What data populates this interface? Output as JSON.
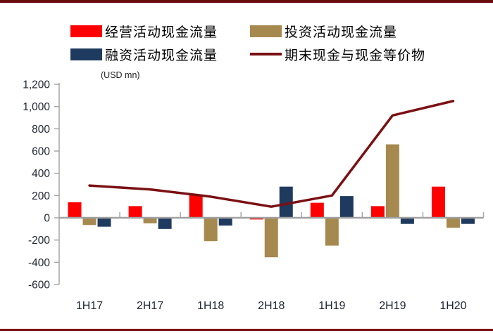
{
  "page": {
    "top_border_color": "#690B0D",
    "bottom_border_color": "#7A1215",
    "axis_color": "#A6A6A6",
    "zero_line_color": "#A0A0A0",
    "tick_label_color": "#1F2533"
  },
  "legend": {
    "items": [
      {
        "label": "经营活动现金流量",
        "color": "#FE0000",
        "swatch": "box"
      },
      {
        "label": "投资活动现金流量",
        "color": "#A6894E",
        "swatch": "box"
      },
      {
        "label": "融资活动现金流量",
        "color": "#1F3A5F",
        "swatch": "box"
      },
      {
        "label": "期末现金与现金等价物",
        "color": "#7A1013",
        "swatch": "line"
      }
    ]
  },
  "chart_data": {
    "type": "bar+line",
    "title": "",
    "xlabel": "",
    "ylabel": "(USD mn)",
    "categories": [
      "1H17",
      "2H17",
      "1H18",
      "2H18",
      "1H19",
      "2H19",
      "1H20"
    ],
    "series": [
      {
        "name": "经营活动现金流量",
        "type": "bar",
        "color": "#FE0000",
        "values": [
          140,
          105,
          205,
          -15,
          135,
          105,
          280
        ]
      },
      {
        "name": "投资活动现金流量",
        "type": "bar",
        "color": "#A6894E",
        "values": [
          -65,
          -50,
          -210,
          -355,
          -250,
          660,
          -90
        ]
      },
      {
        "name": "融资活动现金流量",
        "type": "bar",
        "color": "#1F3A5F",
        "values": [
          -80,
          -100,
          -70,
          280,
          195,
          -55,
          -55
        ]
      },
      {
        "name": "期末现金与现金等价物",
        "type": "line",
        "color": "#7A1013",
        "values": [
          290,
          255,
          190,
          100,
          200,
          920,
          1050
        ]
      }
    ],
    "ylim": [
      -600,
      1200
    ],
    "ytick_step": 200,
    "grid": false,
    "legend_position": "top"
  }
}
